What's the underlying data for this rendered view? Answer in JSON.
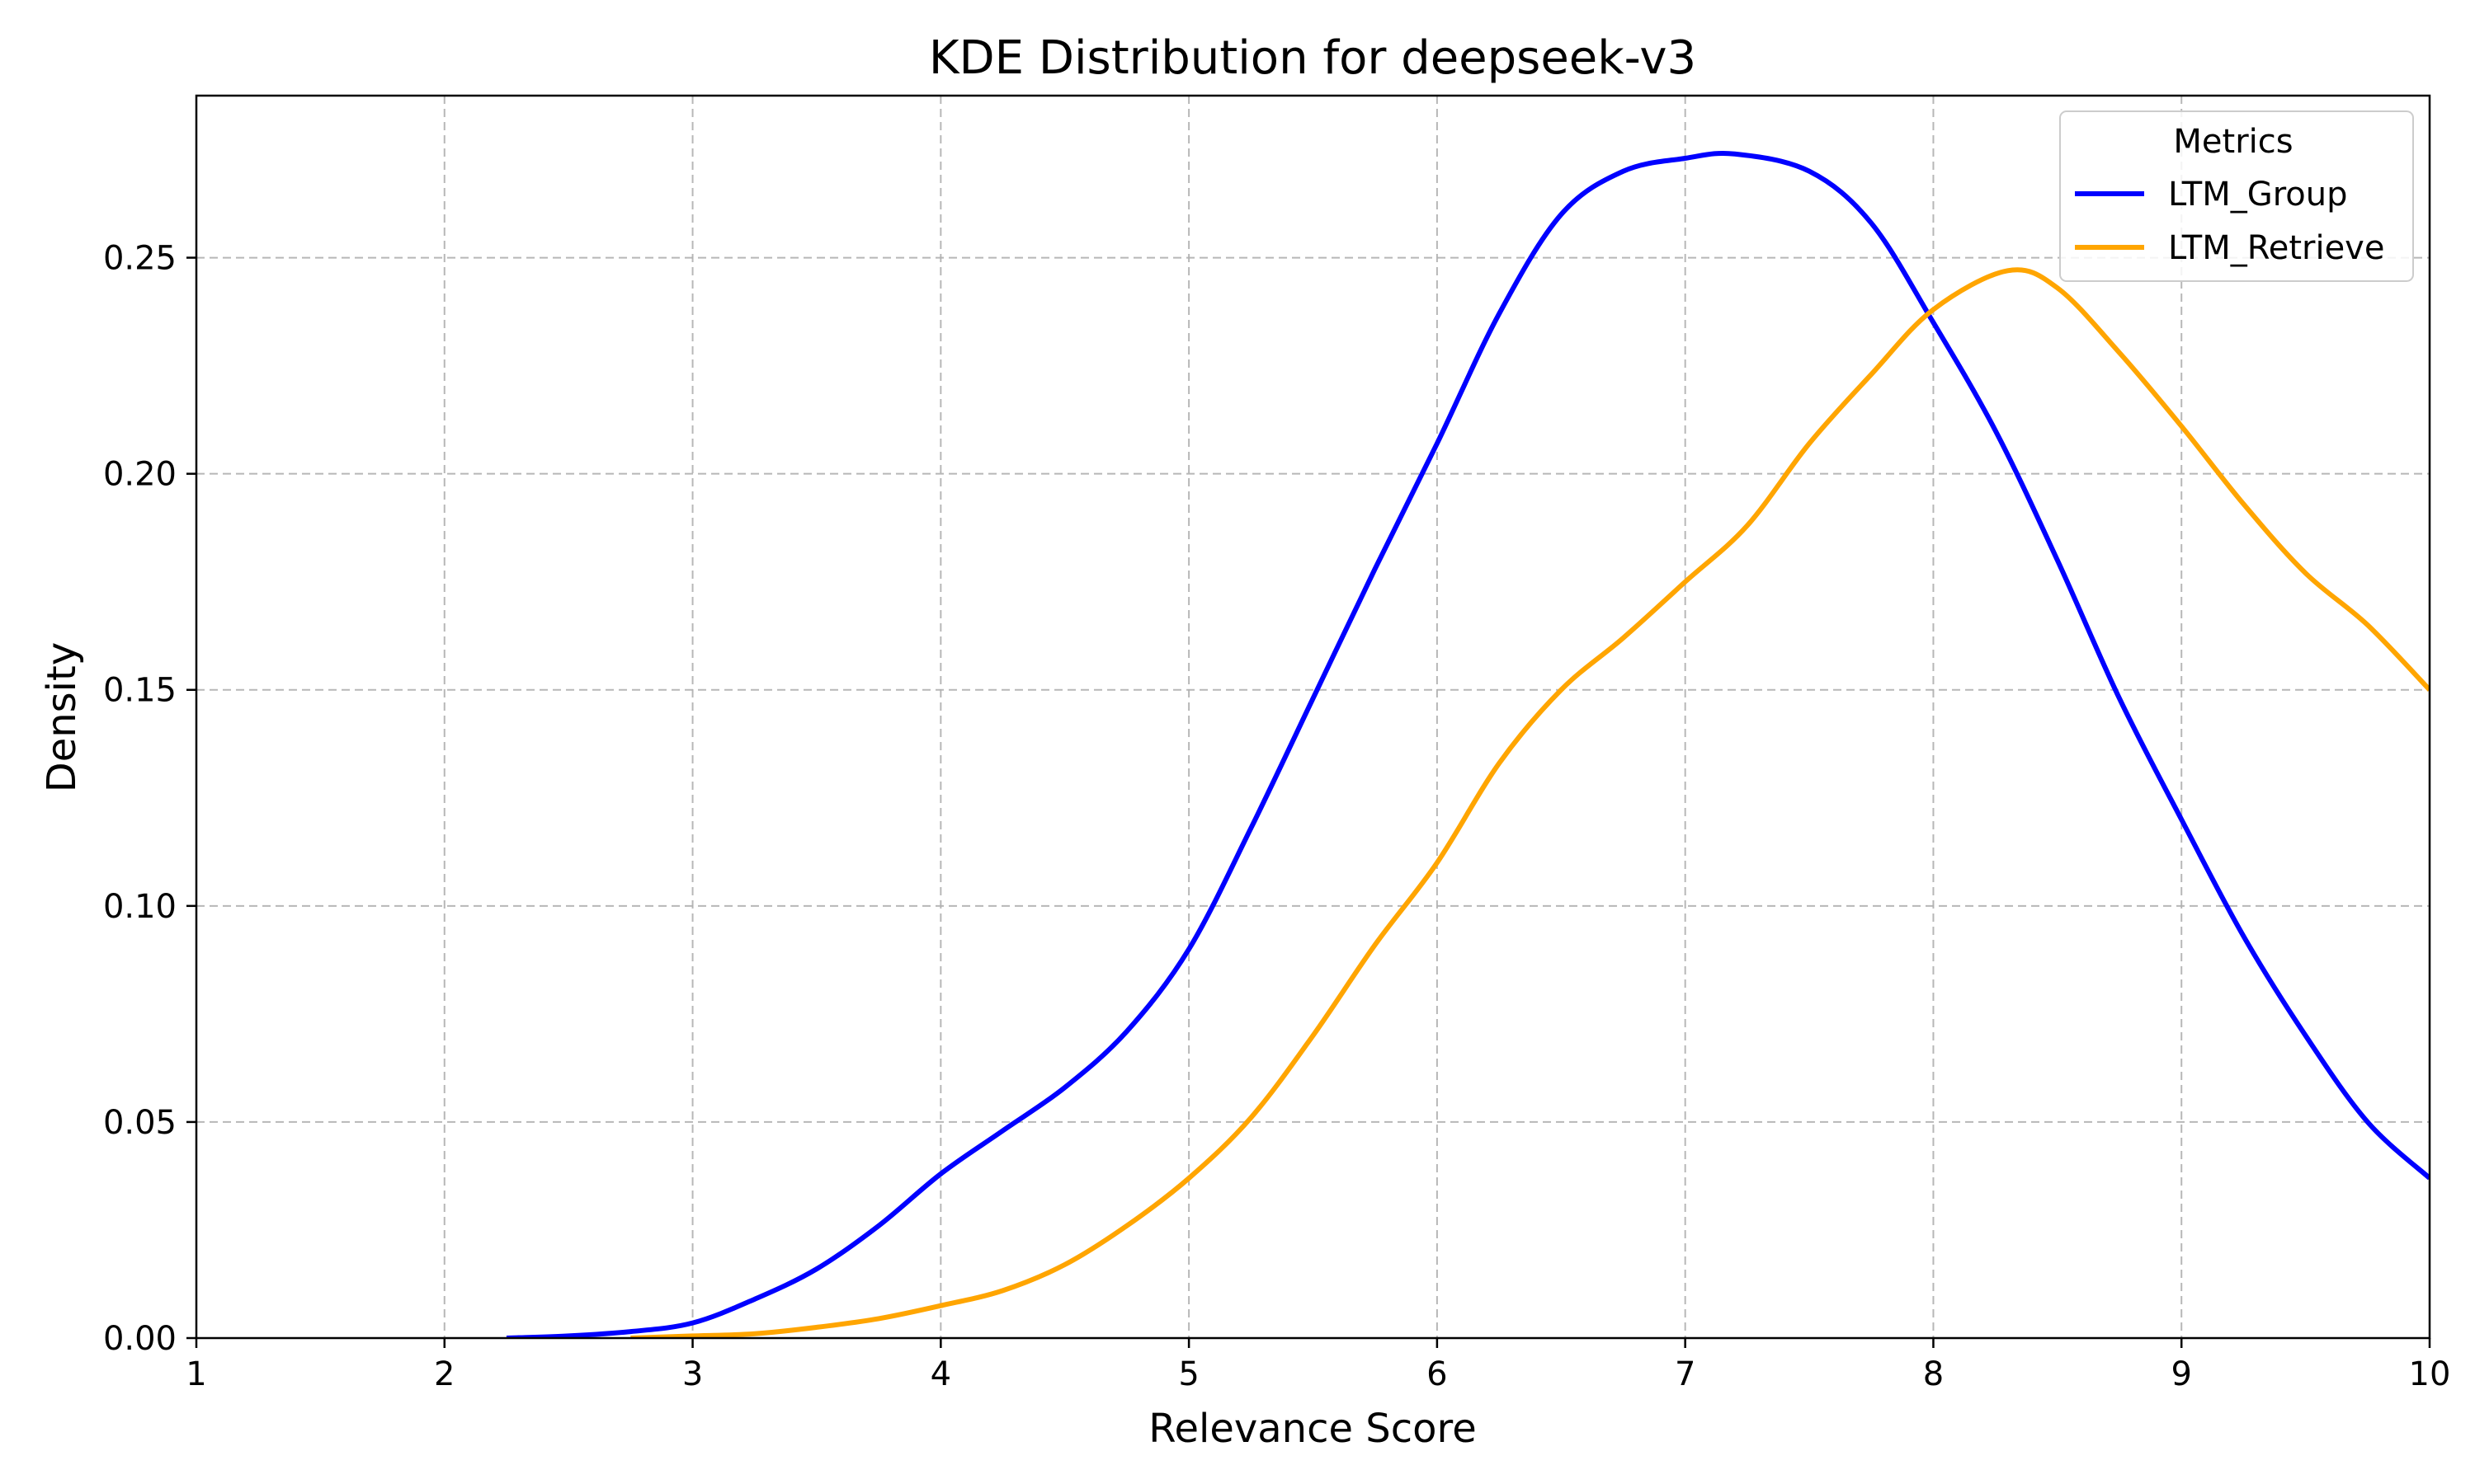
{
  "chart_data": {
    "type": "line",
    "title": "KDE Distribution for deepseek-v3",
    "xlabel": "Relevance Score",
    "ylabel": "Density",
    "xlim": [
      1,
      10
    ],
    "ylim": [
      0,
      0.2875
    ],
    "xticks": [
      1,
      2,
      3,
      4,
      5,
      6,
      7,
      8,
      9,
      10
    ],
    "xtick_labels": [
      "1",
      "2",
      "3",
      "4",
      "5",
      "6",
      "7",
      "8",
      "9",
      "10"
    ],
    "yticks": [
      0.0,
      0.05,
      0.1,
      0.15,
      0.2,
      0.25
    ],
    "ytick_labels": [
      "0.00",
      "0.05",
      "0.10",
      "0.15",
      "0.20",
      "0.25"
    ],
    "grid": true,
    "legend": {
      "title": "Metrics",
      "position": "top-right"
    },
    "series": [
      {
        "name": "LTM_Group",
        "color": "#0000ff",
        "x": [
          2.25,
          2.5,
          2.75,
          3.0,
          3.25,
          3.5,
          3.75,
          4.0,
          4.25,
          4.5,
          4.75,
          5.0,
          5.25,
          5.5,
          5.75,
          6.0,
          6.25,
          6.5,
          6.75,
          7.0,
          7.2,
          7.5,
          7.75,
          8.0,
          8.25,
          8.5,
          8.75,
          9.0,
          9.25,
          9.5,
          9.75,
          10.0
        ],
        "y": [
          0.0,
          0.0005,
          0.0015,
          0.0035,
          0.009,
          0.016,
          0.026,
          0.038,
          0.048,
          0.058,
          0.071,
          0.09,
          0.118,
          0.148,
          0.178,
          0.207,
          0.237,
          0.26,
          0.27,
          0.273,
          0.274,
          0.27,
          0.258,
          0.235,
          0.21,
          0.18,
          0.148,
          0.12,
          0.093,
          0.07,
          0.05,
          0.037
        ]
      },
      {
        "name": "LTM_Retrieve",
        "color": "#ffa500",
        "x": [
          2.75,
          3.0,
          3.25,
          3.5,
          3.75,
          4.0,
          4.25,
          4.5,
          4.75,
          5.0,
          5.25,
          5.5,
          5.75,
          6.0,
          6.25,
          6.5,
          6.75,
          7.0,
          7.25,
          7.5,
          7.75,
          8.0,
          8.3,
          8.5,
          8.75,
          9.0,
          9.25,
          9.5,
          9.75,
          10.0
        ],
        "y": [
          0.0,
          0.0005,
          0.001,
          0.0025,
          0.0045,
          0.0075,
          0.011,
          0.017,
          0.026,
          0.037,
          0.051,
          0.07,
          0.091,
          0.11,
          0.133,
          0.15,
          0.162,
          0.175,
          0.188,
          0.207,
          0.223,
          0.238,
          0.247,
          0.243,
          0.228,
          0.211,
          0.193,
          0.177,
          0.165,
          0.15
        ]
      }
    ]
  }
}
